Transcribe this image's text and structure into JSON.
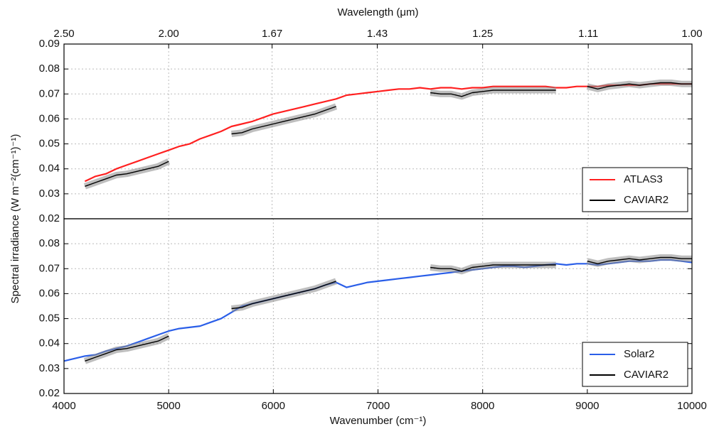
{
  "chart_data": [
    {
      "type": "line",
      "ylabel": "Spectral irradiance (W m⁻²(cm⁻¹)⁻¹)",
      "x2label": "Wavelength (μm)",
      "x2lim": [
        2.5,
        1.0
      ],
      "x2ticks": [
        {
          "value": 2.5,
          "label": "2.50"
        },
        {
          "value": 2.0,
          "label": "2.00"
        },
        1.67,
        1.43,
        1.25,
        1.11,
        {
          "value": 1.0,
          "label": "1.00"
        }
      ],
      "xlim": [
        4000,
        10000
      ],
      "ylim": [
        0.02,
        0.09
      ],
      "yticks": [
        0.02,
        0.03,
        0.04,
        0.05,
        0.06,
        0.07,
        0.08,
        0.09
      ],
      "grid": true,
      "legend": "lower right",
      "x": [
        4000,
        4100,
        4200,
        4300,
        4400,
        4500,
        4600,
        4700,
        4800,
        4900,
        5000,
        5100,
        5200,
        5300,
        5400,
        5500,
        5600,
        5700,
        5800,
        5900,
        6000,
        6100,
        6200,
        6300,
        6400,
        6500,
        6600,
        6700,
        6800,
        6900,
        7000,
        7100,
        7200,
        7300,
        7400,
        7500,
        7600,
        7700,
        7800,
        7900,
        8000,
        8100,
        8200,
        8300,
        8400,
        8500,
        8600,
        8700,
        8800,
        8900,
        9000,
        9100,
        9200,
        9300,
        9400,
        9500,
        9600,
        9700,
        9800,
        9900,
        10000
      ],
      "series": [
        {
          "name": "ATLAS3",
          "color": "#ff2020",
          "values": [
            null,
            null,
            0.035,
            0.037,
            0.038,
            0.04,
            0.0415,
            0.043,
            0.0445,
            0.046,
            0.0475,
            0.049,
            0.05,
            0.052,
            0.0535,
            0.055,
            0.057,
            0.058,
            0.059,
            0.0605,
            0.062,
            0.063,
            0.064,
            0.065,
            0.066,
            0.067,
            0.068,
            0.0695,
            0.07,
            0.0705,
            0.071,
            0.0715,
            0.072,
            0.072,
            0.0725,
            0.072,
            0.0725,
            0.0725,
            0.072,
            0.0725,
            0.0725,
            0.073,
            0.073,
            0.073,
            0.073,
            0.073,
            0.073,
            0.0725,
            0.0725,
            0.073,
            0.073,
            0.073,
            0.0735,
            0.0735,
            0.0735,
            0.0735,
            0.074,
            0.074,
            0.074,
            0.074,
            0.074
          ]
        },
        {
          "name": "CAVIAR2",
          "color": "#000000",
          "values": [
            null,
            null,
            0.033,
            0.0345,
            0.036,
            0.0375,
            0.038,
            0.039,
            0.04,
            0.041,
            0.043,
            null,
            null,
            null,
            null,
            null,
            0.054,
            0.0545,
            0.056,
            0.057,
            0.058,
            0.059,
            0.06,
            0.061,
            0.062,
            0.0635,
            0.065,
            null,
            null,
            null,
            null,
            null,
            null,
            null,
            null,
            0.0705,
            0.07,
            0.07,
            0.069,
            0.0705,
            0.071,
            0.0715,
            0.0715,
            0.0715,
            0.0715,
            0.0715,
            0.0715,
            0.0715,
            null,
            null,
            0.073,
            0.072,
            0.073,
            0.0735,
            0.074,
            0.0735,
            0.074,
            0.0745,
            0.0745,
            0.074,
            0.074
          ]
        }
      ]
    },
    {
      "type": "line",
      "xlabel": "Wavenumber (cm⁻¹)",
      "xlim": [
        4000,
        10000
      ],
      "xticks": [
        4000,
        5000,
        6000,
        7000,
        8000,
        9000,
        10000
      ],
      "ylim": [
        0.02,
        0.09
      ],
      "yticks": [
        0.02,
        0.03,
        0.04,
        0.05,
        0.06,
        0.07,
        0.08
      ],
      "grid": true,
      "legend": "lower right",
      "x": [
        4000,
        4100,
        4200,
        4300,
        4400,
        4500,
        4600,
        4700,
        4800,
        4900,
        5000,
        5100,
        5200,
        5300,
        5400,
        5500,
        5600,
        5700,
        5800,
        5900,
        6000,
        6100,
        6200,
        6300,
        6400,
        6500,
        6600,
        6700,
        6800,
        6900,
        7000,
        7100,
        7200,
        7300,
        7400,
        7500,
        7600,
        7700,
        7800,
        7900,
        8000,
        8100,
        8200,
        8300,
        8400,
        8500,
        8600,
        8700,
        8800,
        8900,
        9000,
        9100,
        9200,
        9300,
        9400,
        9500,
        9600,
        9700,
        9800,
        9900,
        10000
      ],
      "series": [
        {
          "name": "Solar2",
          "color": "#2a5ee8",
          "values": [
            0.033,
            0.034,
            0.035,
            0.0355,
            0.037,
            0.038,
            0.039,
            0.0405,
            0.042,
            0.0435,
            0.045,
            0.046,
            0.0465,
            0.047,
            0.0485,
            0.05,
            0.0525,
            0.055,
            0.056,
            0.057,
            0.058,
            0.059,
            0.06,
            0.061,
            0.062,
            0.0635,
            0.0645,
            0.0625,
            0.0635,
            0.0645,
            0.065,
            0.0655,
            0.066,
            0.0665,
            0.067,
            0.0675,
            0.068,
            0.0685,
            0.069,
            0.0695,
            0.07,
            0.0705,
            0.071,
            0.071,
            0.0705,
            0.071,
            0.0715,
            0.072,
            0.0715,
            0.072,
            0.072,
            0.0715,
            0.072,
            0.0725,
            0.073,
            0.073,
            0.073,
            0.0735,
            0.0735,
            0.073,
            0.0725
          ]
        },
        {
          "name": "CAVIAR2",
          "color": "#000000",
          "values": [
            null,
            null,
            0.033,
            0.0345,
            0.036,
            0.0375,
            0.038,
            0.039,
            0.04,
            0.041,
            0.043,
            null,
            null,
            null,
            null,
            null,
            0.054,
            0.0545,
            0.056,
            0.057,
            0.058,
            0.059,
            0.06,
            0.061,
            0.062,
            0.0635,
            0.065,
            null,
            null,
            null,
            null,
            null,
            null,
            null,
            null,
            0.0705,
            0.07,
            0.07,
            0.069,
            0.0705,
            0.071,
            0.0715,
            0.0715,
            0.0715,
            0.0715,
            0.0715,
            0.0715,
            0.0715,
            null,
            null,
            0.073,
            0.072,
            0.073,
            0.0735,
            0.074,
            0.0735,
            0.074,
            0.0745,
            0.0745,
            0.074,
            0.074
          ]
        }
      ]
    }
  ]
}
